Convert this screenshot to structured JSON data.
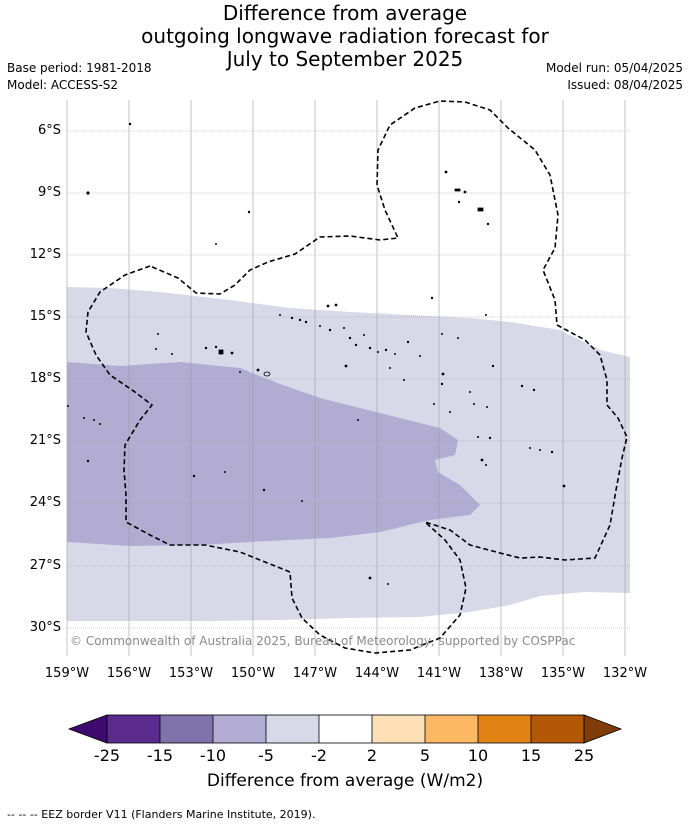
{
  "title": {
    "line1": "Difference from average",
    "line2": "outgoing longwave radiation forecast for",
    "line3": "July to September 2025"
  },
  "meta": {
    "base_period": "Base period: 1981-2018",
    "model": "Model: ACCESS-S2",
    "model_run": "Model run: 05/04/2025",
    "issued": "Issued: 08/04/2025"
  },
  "map": {
    "latitude_labels": [
      "6°S",
      "9°S",
      "12°S",
      "15°S",
      "18°S",
      "21°S",
      "24°S",
      "27°S",
      "30°S"
    ],
    "longitude_labels": [
      "159°W",
      "156°W",
      "153°W",
      "150°W",
      "147°W",
      "144°W",
      "141°W",
      "138°W",
      "135°W",
      "132°W"
    ],
    "copyright": "© Commonwealth of Australia 2025, Bureau of Meteorology, supported by COSPPac",
    "colors": {
      "band_-5_-2": "#d8d8e9",
      "band_-10_-5": "#b2acd3",
      "border": "#000000"
    }
  },
  "colorbar": {
    "ticks": [
      "-25",
      "-15",
      "-10",
      "-5",
      "-2",
      "2",
      "5",
      "10",
      "15",
      "25"
    ],
    "colors": [
      "#3f0a6e",
      "#5a2a8c",
      "#8073ad",
      "#b2acd3",
      "#d8d8e9",
      "#ffffff",
      "#fde0b6",
      "#fdb863",
      "#e08214",
      "#b35806",
      "#7f3b08"
    ],
    "label": "Difference from average (W/m2)"
  },
  "footnote": "-- -- -- EEZ border V11 (Flanders Marine Institute, 2019)."
}
